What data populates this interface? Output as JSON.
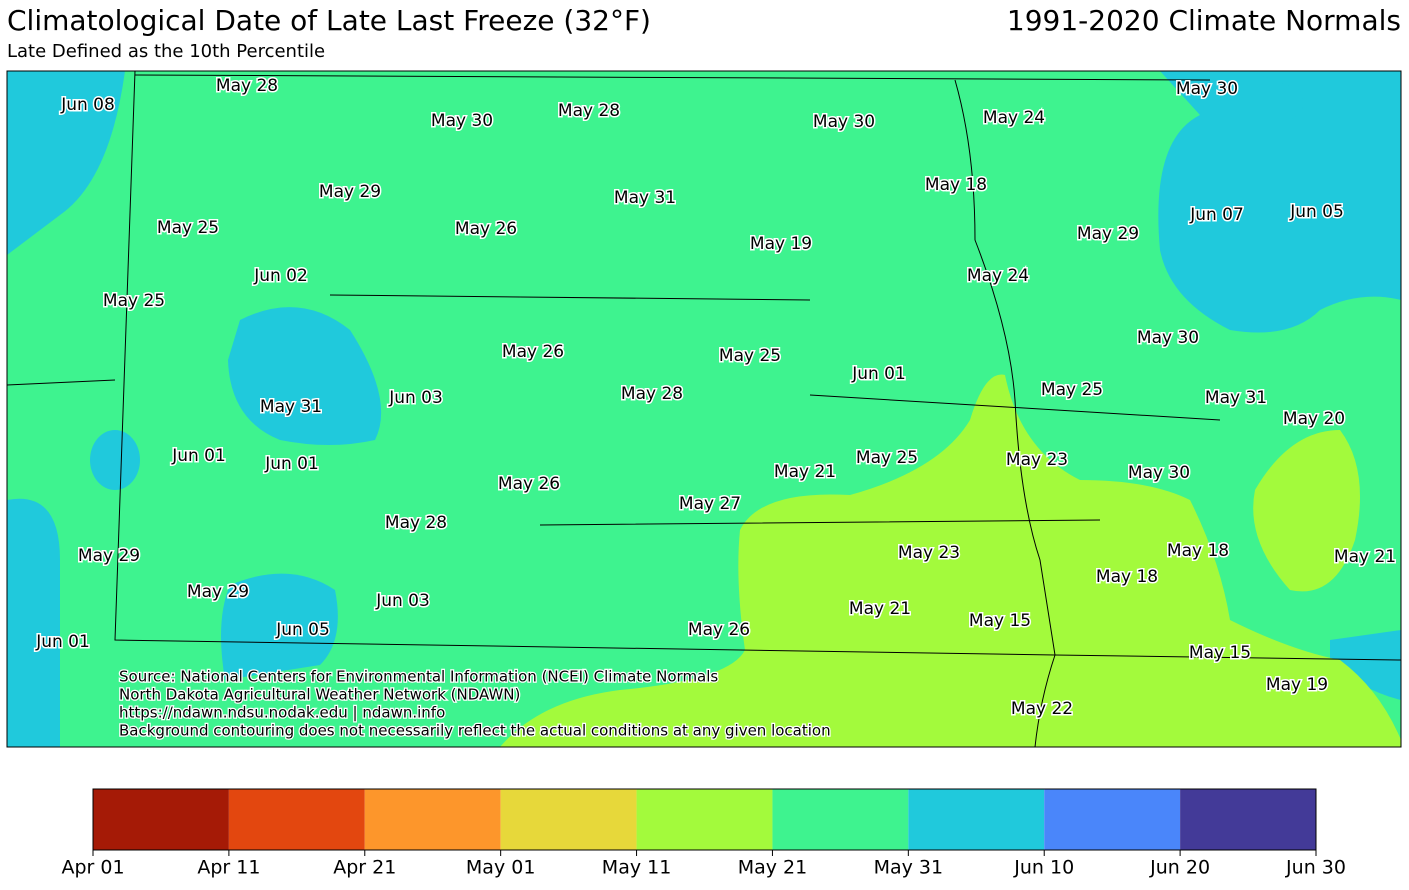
{
  "title": "Climatological Date of Late Last Freeze (32°F)",
  "subtitle": "Late Defined as the 10th Percentile",
  "period": "1991-2020 Climate Normals",
  "stations": [
    "Jun 08",
    "May 28",
    "May 30",
    "May 28",
    "May 30",
    "May 24",
    "May 30",
    "May 29",
    "May 25",
    "May 26",
    "May 31",
    "May 18",
    "May 19",
    "May 29",
    "Jun 07",
    "Jun 05",
    "Jun 02",
    "May 25",
    "May 24",
    "May 26",
    "May 25",
    "May 30",
    "Jun 01",
    "May 31",
    "Jun 03",
    "May 28",
    "May 25",
    "May 31",
    "May 20",
    "Jun 01",
    "Jun 01",
    "May 21",
    "May 25",
    "May 23",
    "May 30",
    "May 26",
    "May 27",
    "May 28",
    "May 29",
    "May 23",
    "May 18",
    "May 21",
    "May 18",
    "May 29",
    "Jun 03",
    "May 21",
    "May 15",
    "Jun 05",
    "Jun 01",
    "May 26",
    "May 15",
    "May 19",
    "May 22"
  ],
  "source": [
    "Source: National Centers for Environmental Information (NCEI) Climate Normals",
    "North Dakota Agricultural Weather Network (NDAWN)",
    "https://ndawn.ndsu.nodak.edu | ndawn.info",
    "Background contouring does not necessarily reflect the actual conditions at any given location"
  ],
  "colorbar": {
    "colors": [
      "#a51a06",
      "#e3470f",
      "#fd962b",
      "#e7d83a",
      "#a3fa3c",
      "#3ef38f",
      "#20c9dc",
      "#4a86fa",
      "#433a98"
    ],
    "ticks": [
      "Apr 01",
      "Apr 11",
      "Apr 21",
      "May 01",
      "May 11",
      "May 21",
      "May 31",
      "Jun 10",
      "Jun 20",
      "Jun 30"
    ]
  }
}
